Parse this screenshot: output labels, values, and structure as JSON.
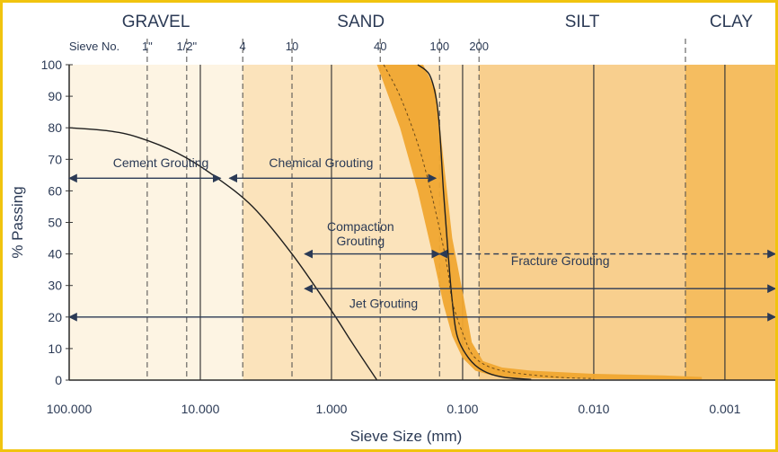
{
  "chart_data": {
    "type": "line",
    "xlabel": "Sieve Size (mm)",
    "ylabel": "% Passing",
    "x_scale": "log",
    "x_reversed": true,
    "xlim": [
      100,
      0.0004
    ],
    "ylim": [
      0,
      100
    ],
    "x_ticks": [
      {
        "value": 100,
        "label": "100.000"
      },
      {
        "value": 10,
        "label": "10.000"
      },
      {
        "value": 1,
        "label": "1.000"
      },
      {
        "value": 0.1,
        "label": "0.100"
      },
      {
        "value": 0.01,
        "label": "0.010"
      },
      {
        "value": 0.001,
        "label": "0.001"
      }
    ],
    "y_ticks": [
      0,
      10,
      20,
      30,
      40,
      50,
      60,
      70,
      80,
      90,
      100
    ],
    "soil_zones": [
      {
        "name": "GRAVEL",
        "from": 100,
        "to": 4.75,
        "color": "#fdf4e3"
      },
      {
        "name": "SAND",
        "from": 4.75,
        "to": 0.075,
        "color": "#fbe3bb"
      },
      {
        "name": "SILT",
        "from": 0.075,
        "to": 0.002,
        "color": "#f8cf8e"
      },
      {
        "name": "CLAY",
        "from": 0.002,
        "to": 0.0004,
        "color": "#f5bd60"
      }
    ],
    "sieve_label": "Sieve No.",
    "sieves": [
      {
        "label": "1\"",
        "size": 25.4
      },
      {
        "label": "1/2\"",
        "size": 12.7
      },
      {
        "label": "4",
        "size": 4.75
      },
      {
        "label": "10",
        "size": 2.0
      },
      {
        "label": "40",
        "size": 0.425
      },
      {
        "label": "100",
        "size": 0.15
      },
      {
        "label": "200",
        "size": 0.075
      }
    ],
    "grout_ranges": [
      {
        "name": "Cement Grouting",
        "from": 100,
        "to": 7.0,
        "y": 64,
        "label_y": 67.5,
        "label_x": 20,
        "style": "solid"
      },
      {
        "name": "Chemical Grouting",
        "from": 6.0,
        "to": 0.16,
        "y": 64,
        "label_y": 67.5,
        "label_x": 1.2,
        "style": "solid"
      },
      {
        "name": "Compaction\nGrouting",
        "from": 1.6,
        "to": 0.15,
        "y": 40,
        "label_y": 45,
        "label_x": 0.6,
        "style": "solid"
      },
      {
        "name": "Fracture Grouting",
        "from": 0.15,
        "to": 0.0004,
        "y": 40,
        "label_y": 36.5,
        "label_x": 0.018,
        "style": "dashed"
      },
      {
        "name": "",
        "from": 1.6,
        "to": 0.0004,
        "y": 29,
        "style": "solid"
      },
      {
        "name": "Jet Grouting",
        "from": 100,
        "to": 0.0004,
        "y": 20,
        "label_y": 23,
        "label_x": 0.4,
        "style": "solid"
      }
    ],
    "series": [
      {
        "type": "curve",
        "color": "#1f1f1f",
        "points": [
          [
            100,
            80
          ],
          [
            50,
            79
          ],
          [
            30,
            77
          ],
          [
            15,
            72
          ],
          [
            8,
            65
          ],
          [
            4,
            55
          ],
          [
            2,
            40
          ],
          [
            1,
            22
          ],
          [
            0.7,
            12
          ],
          [
            0.45,
            0
          ]
        ]
      },
      {
        "type": "curve",
        "color": "#1f1f1f",
        "points": [
          [
            0.22,
            100
          ],
          [
            0.18,
            97
          ],
          [
            0.16,
            90
          ],
          [
            0.15,
            80
          ],
          [
            0.14,
            60
          ],
          [
            0.13,
            42
          ],
          [
            0.12,
            25
          ],
          [
            0.11,
            14
          ],
          [
            0.09,
            7
          ],
          [
            0.07,
            3
          ],
          [
            0.05,
            1
          ],
          [
            0.03,
            0.2
          ]
        ]
      },
      {
        "type": "curve",
        "color": "#6b4a1a",
        "dashed": true,
        "points": [
          [
            0.4,
            100
          ],
          [
            0.3,
            90
          ],
          [
            0.22,
            75
          ],
          [
            0.18,
            62
          ],
          [
            0.15,
            48
          ],
          [
            0.13,
            35
          ],
          [
            0.12,
            25
          ],
          [
            0.1,
            15
          ],
          [
            0.08,
            7
          ],
          [
            0.05,
            3
          ],
          [
            0.02,
            1
          ],
          [
            0.01,
            0.5
          ]
        ]
      },
      {
        "type": "band",
        "color": "#f0a630",
        "upper": [
          [
            0.45,
            100
          ],
          [
            0.2,
            100
          ],
          [
            0.16,
            92
          ],
          [
            0.14,
            70
          ],
          [
            0.12,
            45
          ],
          [
            0.1,
            28
          ],
          [
            0.085,
            12
          ],
          [
            0.07,
            6
          ],
          [
            0.05,
            4
          ],
          [
            0.03,
            3
          ],
          [
            0.01,
            2
          ],
          [
            0.003,
            1.5
          ],
          [
            0.0015,
            1
          ]
        ],
        "lower": [
          [
            0.45,
            100
          ],
          [
            0.3,
            80
          ],
          [
            0.22,
            60
          ],
          [
            0.17,
            40
          ],
          [
            0.14,
            24
          ],
          [
            0.12,
            14
          ],
          [
            0.1,
            7
          ],
          [
            0.08,
            3
          ],
          [
            0.06,
            1.5
          ],
          [
            0.04,
            0.8
          ],
          [
            0.02,
            0.5
          ],
          [
            0.01,
            0.3
          ],
          [
            0.003,
            0.2
          ],
          [
            0.0015,
            0.2
          ]
        ]
      }
    ]
  }
}
